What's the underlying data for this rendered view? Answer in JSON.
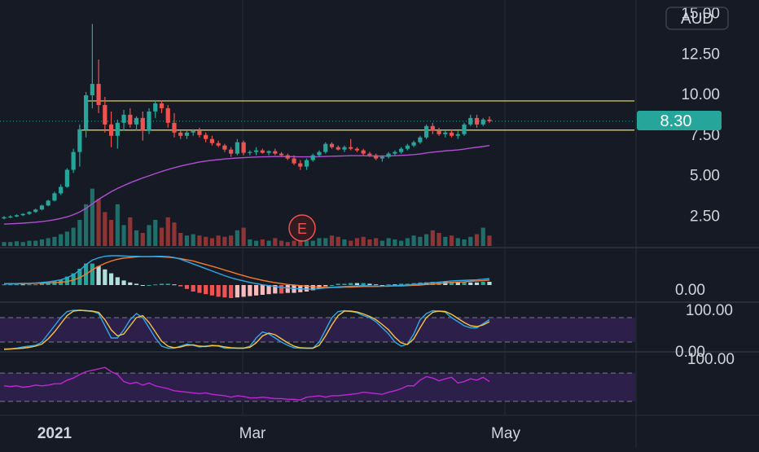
{
  "currency_label": "AUD",
  "price_badge": "8.30",
  "earnings_marker": "E",
  "colors": {
    "background": "#161a25",
    "bull": "#26a69a",
    "bear": "#ef5350",
    "bull_volume": "#1f6e6a",
    "bear_volume": "#8e3434",
    "ma_line": "#b04fd1",
    "level_line": "#f2e34a",
    "macd_line": "#2ea8e6",
    "signal_line": "#f57c2d",
    "stoch_k": "#2ea8e6",
    "stoch_d": "#f5c242",
    "rsi_line": "#c026d3",
    "osc_band": "#2c1f4a",
    "price_badge": "#26a69a",
    "axis_text": "#d1d4dc",
    "grid": "#262b38"
  },
  "chart_data": [
    {
      "type": "candlestick",
      "panel": "price",
      "y_axis_ticks": [
        "2.50",
        "5.00",
        "7.50",
        "10.00",
        "12.50",
        "15.00"
      ],
      "ylim": [
        0,
        15
      ],
      "last_price": 8.3,
      "horizontal_levels": [
        9.55,
        7.75
      ],
      "x_axis_labels": [
        "2021",
        "Mar",
        "May"
      ],
      "candles": [
        {
          "o": 2.3,
          "h": 2.45,
          "l": 2.25,
          "c": 2.38
        },
        {
          "o": 2.38,
          "h": 2.5,
          "l": 2.32,
          "c": 2.42
        },
        {
          "o": 2.42,
          "h": 2.55,
          "l": 2.38,
          "c": 2.5
        },
        {
          "o": 2.5,
          "h": 2.62,
          "l": 2.45,
          "c": 2.58
        },
        {
          "o": 2.58,
          "h": 2.75,
          "l": 2.52,
          "c": 2.7
        },
        {
          "o": 2.7,
          "h": 2.9,
          "l": 2.65,
          "c": 2.85
        },
        {
          "o": 2.85,
          "h": 3.15,
          "l": 2.8,
          "c": 3.1
        },
        {
          "o": 3.1,
          "h": 3.45,
          "l": 3.05,
          "c": 3.4
        },
        {
          "o": 3.4,
          "h": 3.95,
          "l": 3.35,
          "c": 3.85
        },
        {
          "o": 3.85,
          "h": 4.4,
          "l": 3.75,
          "c": 4.25
        },
        {
          "o": 4.25,
          "h": 5.4,
          "l": 4.2,
          "c": 5.3
        },
        {
          "o": 5.3,
          "h": 6.6,
          "l": 5.1,
          "c": 6.4
        },
        {
          "o": 6.4,
          "h": 8.1,
          "l": 5.5,
          "c": 7.8
        },
        {
          "o": 7.8,
          "h": 10.1,
          "l": 7.3,
          "c": 9.9
        },
        {
          "o": 9.9,
          "h": 14.3,
          "l": 9.1,
          "c": 10.6
        },
        {
          "o": 10.6,
          "h": 12.1,
          "l": 8.8,
          "c": 9.3
        },
        {
          "o": 9.3,
          "h": 9.8,
          "l": 7.6,
          "c": 8.1
        },
        {
          "o": 8.1,
          "h": 8.9,
          "l": 6.7,
          "c": 7.4
        },
        {
          "o": 7.4,
          "h": 8.4,
          "l": 6.6,
          "c": 8.2
        },
        {
          "o": 8.2,
          "h": 9.0,
          "l": 7.7,
          "c": 8.7
        },
        {
          "o": 8.7,
          "h": 9.1,
          "l": 7.9,
          "c": 8.1
        },
        {
          "o": 8.1,
          "h": 8.6,
          "l": 7.7,
          "c": 8.5
        },
        {
          "o": 8.5,
          "h": 8.9,
          "l": 7.1,
          "c": 7.7
        },
        {
          "o": 7.7,
          "h": 9.1,
          "l": 7.5,
          "c": 8.9
        },
        {
          "o": 8.9,
          "h": 9.6,
          "l": 8.5,
          "c": 9.4
        },
        {
          "o": 9.4,
          "h": 9.6,
          "l": 8.8,
          "c": 9.1
        },
        {
          "o": 9.1,
          "h": 9.3,
          "l": 7.9,
          "c": 8.2
        },
        {
          "o": 8.2,
          "h": 8.8,
          "l": 7.3,
          "c": 7.6
        },
        {
          "o": 7.6,
          "h": 7.7,
          "l": 7.2,
          "c": 7.4
        },
        {
          "o": 7.4,
          "h": 7.7,
          "l": 7.2,
          "c": 7.6
        },
        {
          "o": 7.6,
          "h": 7.8,
          "l": 7.4,
          "c": 7.7
        },
        {
          "o": 7.7,
          "h": 7.9,
          "l": 7.3,
          "c": 7.45
        },
        {
          "o": 7.45,
          "h": 7.6,
          "l": 7.0,
          "c": 7.2
        },
        {
          "o": 7.2,
          "h": 7.4,
          "l": 6.8,
          "c": 6.95
        },
        {
          "o": 6.95,
          "h": 7.1,
          "l": 6.7,
          "c": 6.8
        },
        {
          "o": 6.8,
          "h": 6.9,
          "l": 6.4,
          "c": 6.55
        },
        {
          "o": 6.55,
          "h": 6.7,
          "l": 6.1,
          "c": 6.3
        },
        {
          "o": 6.3,
          "h": 7.2,
          "l": 6.2,
          "c": 7.0
        },
        {
          "o": 7.0,
          "h": 7.1,
          "l": 6.2,
          "c": 6.35
        },
        {
          "o": 6.35,
          "h": 6.5,
          "l": 6.2,
          "c": 6.4
        },
        {
          "o": 6.4,
          "h": 6.7,
          "l": 6.2,
          "c": 6.5
        },
        {
          "o": 6.5,
          "h": 6.6,
          "l": 6.3,
          "c": 6.35
        },
        {
          "o": 6.35,
          "h": 6.5,
          "l": 6.2,
          "c": 6.45
        },
        {
          "o": 6.45,
          "h": 6.6,
          "l": 6.2,
          "c": 6.3
        },
        {
          "o": 6.3,
          "h": 6.4,
          "l": 6.1,
          "c": 6.2
        },
        {
          "o": 6.2,
          "h": 6.3,
          "l": 5.9,
          "c": 6.0
        },
        {
          "o": 6.0,
          "h": 6.2,
          "l": 5.6,
          "c": 5.7
        },
        {
          "o": 5.7,
          "h": 5.9,
          "l": 5.3,
          "c": 5.5
        },
        {
          "o": 5.5,
          "h": 6.0,
          "l": 5.3,
          "c": 5.9
        },
        {
          "o": 5.9,
          "h": 6.3,
          "l": 5.8,
          "c": 6.2
        },
        {
          "o": 6.2,
          "h": 6.5,
          "l": 6.1,
          "c": 6.4
        },
        {
          "o": 6.4,
          "h": 7.0,
          "l": 6.3,
          "c": 6.9
        },
        {
          "o": 6.9,
          "h": 7.0,
          "l": 6.6,
          "c": 6.7
        },
        {
          "o": 6.7,
          "h": 6.8,
          "l": 6.5,
          "c": 6.55
        },
        {
          "o": 6.55,
          "h": 6.8,
          "l": 6.4,
          "c": 6.7
        },
        {
          "o": 6.7,
          "h": 7.2,
          "l": 6.5,
          "c": 6.6
        },
        {
          "o": 6.6,
          "h": 6.7,
          "l": 6.4,
          "c": 6.5
        },
        {
          "o": 6.5,
          "h": 6.6,
          "l": 6.2,
          "c": 6.3
        },
        {
          "o": 6.3,
          "h": 6.4,
          "l": 6.1,
          "c": 6.2
        },
        {
          "o": 6.2,
          "h": 6.3,
          "l": 5.9,
          "c": 6.0
        },
        {
          "o": 6.0,
          "h": 6.2,
          "l": 5.8,
          "c": 6.1
        },
        {
          "o": 6.1,
          "h": 6.4,
          "l": 6.0,
          "c": 6.3
        },
        {
          "o": 6.3,
          "h": 6.5,
          "l": 6.2,
          "c": 6.4
        },
        {
          "o": 6.4,
          "h": 6.7,
          "l": 6.3,
          "c": 6.6
        },
        {
          "o": 6.6,
          "h": 6.9,
          "l": 6.5,
          "c": 6.8
        },
        {
          "o": 6.8,
          "h": 7.1,
          "l": 6.7,
          "c": 7.0
        },
        {
          "o": 7.0,
          "h": 7.4,
          "l": 6.9,
          "c": 7.3
        },
        {
          "o": 7.3,
          "h": 8.1,
          "l": 7.2,
          "c": 8.0
        },
        {
          "o": 8.0,
          "h": 8.2,
          "l": 7.5,
          "c": 7.7
        },
        {
          "o": 7.7,
          "h": 7.9,
          "l": 7.4,
          "c": 7.5
        },
        {
          "o": 7.5,
          "h": 7.7,
          "l": 7.3,
          "c": 7.6
        },
        {
          "o": 7.6,
          "h": 7.8,
          "l": 7.3,
          "c": 7.4
        },
        {
          "o": 7.4,
          "h": 7.7,
          "l": 7.2,
          "c": 7.5
        },
        {
          "o": 7.5,
          "h": 8.2,
          "l": 7.4,
          "c": 8.1
        },
        {
          "o": 8.1,
          "h": 8.7,
          "l": 8.0,
          "c": 8.5
        },
        {
          "o": 8.5,
          "h": 8.7,
          "l": 7.9,
          "c": 8.1
        },
        {
          "o": 8.1,
          "h": 8.5,
          "l": 8.0,
          "c": 8.4
        },
        {
          "o": 8.4,
          "h": 8.6,
          "l": 8.2,
          "c": 8.3
        }
      ],
      "moving_average": [
        1.95,
        1.97,
        1.99,
        2.01,
        2.04,
        2.07,
        2.11,
        2.16,
        2.22,
        2.3,
        2.4,
        2.53,
        2.7,
        2.92,
        3.2,
        3.48,
        3.72,
        3.95,
        4.15,
        4.33,
        4.5,
        4.65,
        4.8,
        4.93,
        5.07,
        5.2,
        5.32,
        5.43,
        5.53,
        5.62,
        5.7,
        5.78,
        5.84,
        5.89,
        5.93,
        5.97,
        6.0,
        6.03,
        6.05,
        6.07,
        6.09,
        6.1,
        6.11,
        6.12,
        6.12,
        6.12,
        6.11,
        6.1,
        6.1,
        6.1,
        6.11,
        6.13,
        6.14,
        6.15,
        6.16,
        6.17,
        6.17,
        6.17,
        6.16,
        6.15,
        6.15,
        6.16,
        6.17,
        6.19,
        6.21,
        6.24,
        6.28,
        6.34,
        6.39,
        6.43,
        6.47,
        6.5,
        6.53,
        6.58,
        6.64,
        6.69,
        6.74,
        6.8
      ],
      "volume": [
        0.15,
        0.15,
        0.18,
        0.15,
        0.2,
        0.2,
        0.25,
        0.3,
        0.35,
        0.45,
        0.55,
        0.7,
        1.0,
        1.6,
        2.2,
        1.8,
        1.3,
        1.0,
        1.6,
        0.8,
        1.1,
        0.6,
        0.5,
        0.8,
        1.0,
        0.7,
        1.1,
        0.9,
        0.5,
        0.4,
        0.45,
        0.4,
        0.35,
        0.3,
        0.4,
        0.35,
        0.4,
        0.6,
        0.7,
        0.25,
        0.2,
        0.25,
        0.2,
        0.3,
        0.2,
        0.15,
        0.2,
        0.25,
        0.2,
        0.2,
        0.3,
        0.3,
        0.4,
        0.35,
        0.25,
        0.2,
        0.3,
        0.35,
        0.25,
        0.3,
        0.2,
        0.3,
        0.25,
        0.2,
        0.3,
        0.4,
        0.35,
        0.45,
        0.6,
        0.5,
        0.35,
        0.4,
        0.3,
        0.25,
        0.35,
        0.45,
        0.7,
        0.4
      ]
    },
    {
      "type": "macd",
      "panel": "macd",
      "y_axis_ticks": [
        "0.00"
      ],
      "macd": [
        0.05,
        0.05,
        0.05,
        0.06,
        0.06,
        0.07,
        0.09,
        0.11,
        0.14,
        0.18,
        0.25,
        0.35,
        0.5,
        0.7,
        0.85,
        0.93,
        0.98,
        1.0,
        1.0,
        0.99,
        0.98,
        0.98,
        0.97,
        0.97,
        0.98,
        0.98,
        0.97,
        0.94,
        0.88,
        0.8,
        0.72,
        0.64,
        0.56,
        0.48,
        0.4,
        0.32,
        0.25,
        0.19,
        0.14,
        0.09,
        0.05,
        0.01,
        -0.02,
        -0.05,
        -0.08,
        -0.1,
        -0.12,
        -0.13,
        -0.14,
        -0.14,
        -0.12,
        -0.1,
        -0.08,
        -0.06,
        -0.05,
        -0.04,
        -0.03,
        -0.02,
        -0.03,
        -0.04,
        -0.04,
        -0.03,
        -0.02,
        -0.01,
        0.0,
        0.02,
        0.04,
        0.06,
        0.08,
        0.1,
        0.12,
        0.14,
        0.15,
        0.16,
        0.17,
        0.18,
        0.2,
        0.22
      ],
      "signal": [
        0.04,
        0.04,
        0.04,
        0.05,
        0.05,
        0.06,
        0.06,
        0.07,
        0.08,
        0.1,
        0.12,
        0.17,
        0.25,
        0.37,
        0.52,
        0.64,
        0.74,
        0.82,
        0.88,
        0.92,
        0.94,
        0.96,
        0.97,
        0.97,
        0.97,
        0.96,
        0.95,
        0.93,
        0.9,
        0.86,
        0.82,
        0.76,
        0.7,
        0.64,
        0.58,
        0.51,
        0.45,
        0.38,
        0.32,
        0.26,
        0.21,
        0.16,
        0.12,
        0.08,
        0.05,
        0.02,
        0.0,
        -0.02,
        -0.04,
        -0.06,
        -0.07,
        -0.08,
        -0.08,
        -0.08,
        -0.07,
        -0.07,
        -0.06,
        -0.05,
        -0.05,
        -0.05,
        -0.04,
        -0.04,
        -0.03,
        -0.03,
        -0.02,
        -0.01,
        0.0,
        0.02,
        0.03,
        0.05,
        0.07,
        0.09,
        0.1,
        0.11,
        0.13,
        0.14,
        0.15,
        0.17
      ]
    },
    {
      "type": "line",
      "panel": "stochastic",
      "y_axis_ticks": [
        "0.00",
        "100.00"
      ],
      "ylim": [
        0,
        100
      ],
      "band": [
        20,
        80
      ],
      "k": [
        3,
        3,
        5,
        8,
        10,
        12,
        20,
        40,
        60,
        80,
        95,
        98,
        98,
        97,
        95,
        90,
        60,
        30,
        30,
        50,
        75,
        90,
        80,
        55,
        30,
        10,
        5,
        5,
        10,
        15,
        12,
        8,
        10,
        12,
        10,
        5,
        5,
        5,
        5,
        10,
        30,
        45,
        40,
        30,
        20,
        12,
        6,
        5,
        5,
        5,
        20,
        50,
        80,
        95,
        97,
        95,
        92,
        85,
        80,
        70,
        55,
        40,
        20,
        10,
        15,
        40,
        75,
        90,
        97,
        96,
        93,
        80,
        70,
        60,
        55,
        55,
        65,
        75
      ],
      "d": [
        2,
        3,
        4,
        5,
        7,
        10,
        15,
        28,
        45,
        65,
        85,
        96,
        98,
        97,
        96,
        93,
        75,
        50,
        35,
        40,
        60,
        80,
        85,
        68,
        45,
        22,
        10,
        6,
        8,
        12,
        13,
        10,
        9,
        11,
        11,
        8,
        6,
        5,
        5,
        7,
        18,
        35,
        42,
        38,
        28,
        18,
        10,
        6,
        5,
        5,
        12,
        35,
        62,
        85,
        96,
        96,
        94,
        89,
        83,
        75,
        63,
        50,
        32,
        18,
        14,
        28,
        55,
        80,
        93,
        96,
        95,
        88,
        78,
        68,
        60,
        58,
        62,
        70
      ]
    },
    {
      "type": "line",
      "panel": "rsi",
      "y_axis_ticks": [
        "100.00"
      ],
      "ylim": [
        0,
        100
      ],
      "band": [
        30,
        70
      ],
      "rsi": [
        52,
        51,
        52,
        50,
        51,
        53,
        52,
        53,
        55,
        55,
        60,
        63,
        68,
        72,
        74,
        76,
        78,
        72,
        68,
        58,
        55,
        57,
        53,
        56,
        52,
        50,
        48,
        45,
        44,
        43,
        42,
        41,
        42,
        40,
        39,
        38,
        36,
        38,
        37,
        35,
        35,
        36,
        35,
        34,
        34,
        33,
        33,
        32,
        36,
        37,
        38,
        36,
        38,
        38,
        39,
        40,
        41,
        43,
        42,
        41,
        40,
        43,
        45,
        48,
        52,
        52,
        60,
        65,
        63,
        59,
        62,
        64,
        56,
        58,
        62,
        60,
        64,
        58
      ]
    }
  ]
}
